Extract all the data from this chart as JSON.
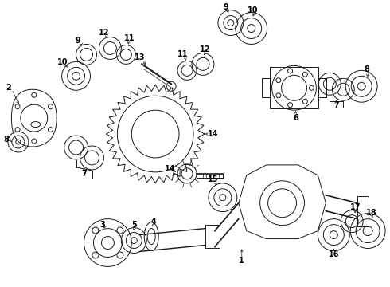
{
  "bg_color": "#ffffff",
  "line_color": "#1a1a1a",
  "label_color": "#000000",
  "figsize": [
    4.9,
    3.6
  ],
  "dpi": 100,
  "lw": 0.7
}
